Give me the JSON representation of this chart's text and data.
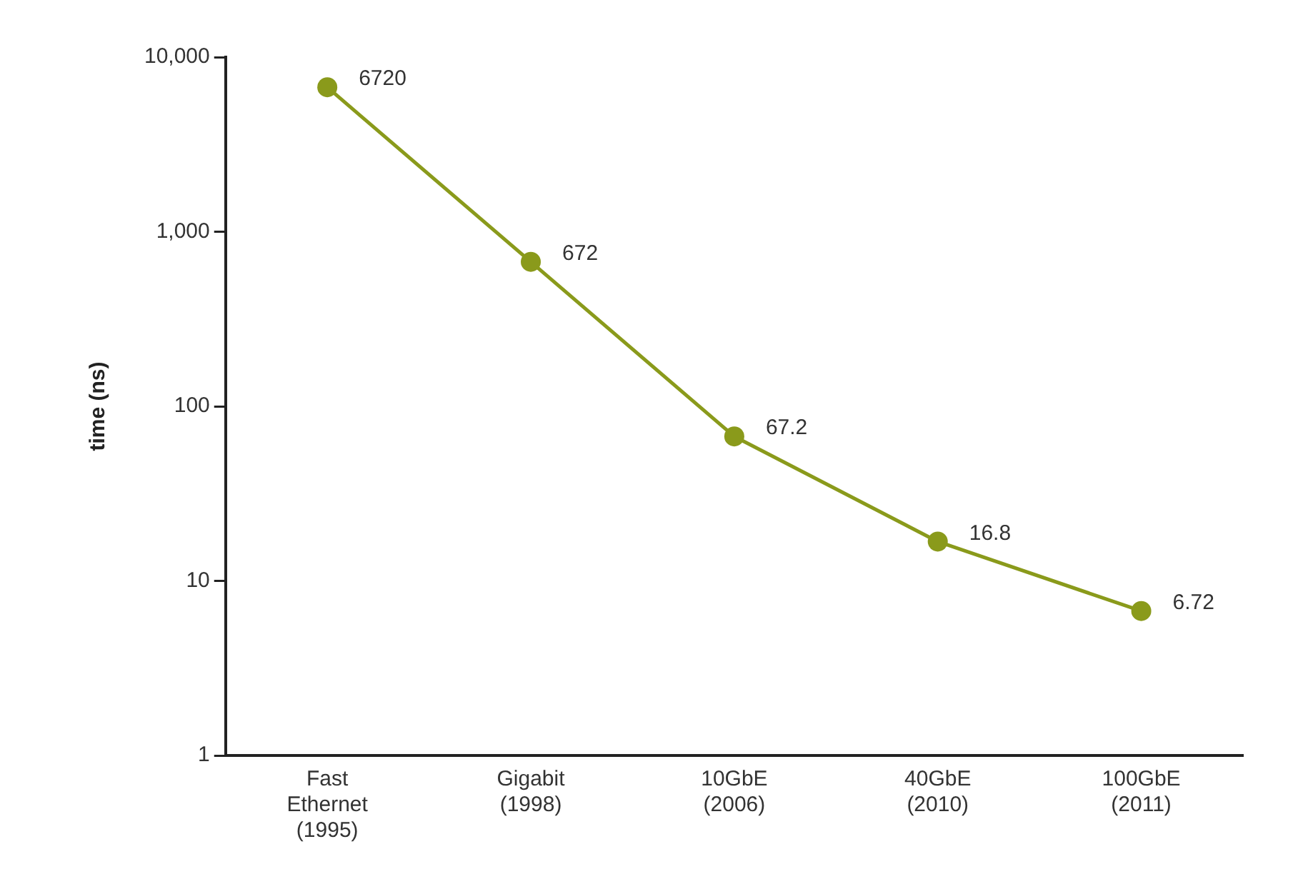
{
  "chart_data": {
    "type": "line",
    "ylabel": "time (ns)",
    "categories": [
      "Fast Ethernet (1995)",
      "Gigabit (1998)",
      "10GbE (2006)",
      "40GbE (2010)",
      "100GbE (2011)"
    ],
    "values": [
      6720,
      672,
      67.2,
      16.8,
      6.72
    ],
    "color": "#8a9a1b",
    "marker": "circle",
    "log": true,
    "grid": false,
    "legend": false,
    "data_labels": true,
    "ylim": [
      1,
      10000
    ],
    "yticks": [
      1,
      10,
      100,
      {
        "value": 1000,
        "label": "1,000"
      },
      {
        "value": 10000,
        "label": "10,000"
      }
    ]
  }
}
